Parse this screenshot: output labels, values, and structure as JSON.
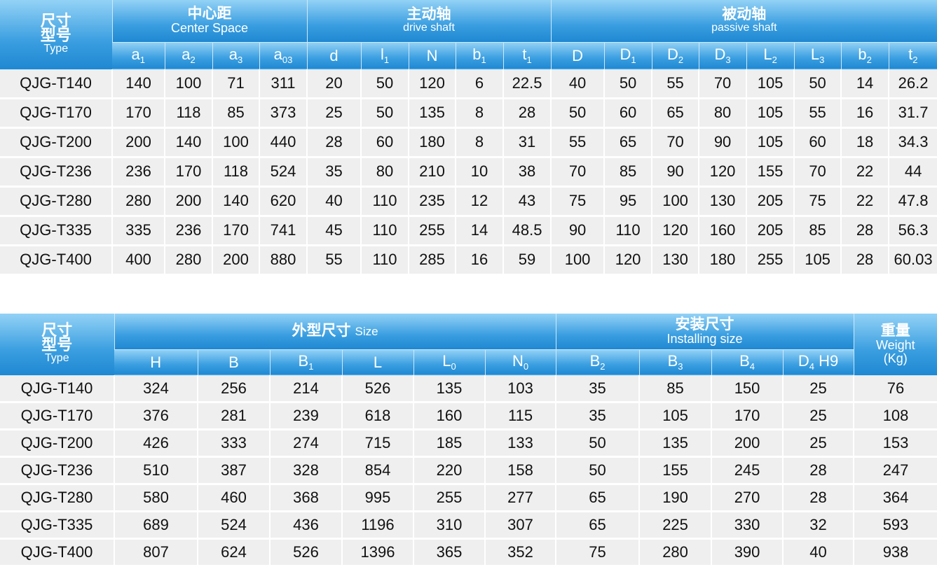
{
  "colors": {
    "header_top": "#93d2f6",
    "header_bottom": "#1f88d2",
    "row_bg": "#efefef"
  },
  "table1": {
    "type_header": {
      "zh1": "尺寸",
      "zh2": "型号",
      "en": "Type"
    },
    "groups": [
      {
        "zh": "中心距",
        "en": "Center Space",
        "span": 4
      },
      {
        "zh": "主动轴",
        "en": "drive shaft",
        "span": 5
      },
      {
        "zh": "被动轴",
        "en": "passive shaft",
        "span": 8
      }
    ],
    "columns": [
      {
        "b": "a",
        "s": "1"
      },
      {
        "b": "a",
        "s": "2"
      },
      {
        "b": "a",
        "s": "3"
      },
      {
        "b": "a",
        "s": "03"
      },
      {
        "b": "d",
        "s": ""
      },
      {
        "b": "l",
        "s": "1"
      },
      {
        "b": "N",
        "s": ""
      },
      {
        "b": "b",
        "s": "1"
      },
      {
        "b": "t",
        "s": "1"
      },
      {
        "b": "D",
        "s": ""
      },
      {
        "b": "D",
        "s": "1"
      },
      {
        "b": "D",
        "s": "2"
      },
      {
        "b": "D",
        "s": "3"
      },
      {
        "b": "L",
        "s": "2"
      },
      {
        "b": "L",
        "s": "3"
      },
      {
        "b": "b",
        "s": "2"
      },
      {
        "b": "t",
        "s": "2"
      }
    ],
    "rows": [
      [
        "QJG-T140",
        "140",
        "100",
        "71",
        "311",
        "20",
        "50",
        "120",
        "6",
        "22.5",
        "40",
        "50",
        "55",
        "70",
        "105",
        "50",
        "14",
        "26.2"
      ],
      [
        "QJG-T170",
        "170",
        "118",
        "85",
        "373",
        "25",
        "50",
        "135",
        "8",
        "28",
        "50",
        "60",
        "65",
        "80",
        "105",
        "55",
        "16",
        "31.7"
      ],
      [
        "QJG-T200",
        "200",
        "140",
        "100",
        "440",
        "28",
        "60",
        "180",
        "8",
        "31",
        "55",
        "65",
        "70",
        "90",
        "105",
        "60",
        "18",
        "34.3"
      ],
      [
        "QJG-T236",
        "236",
        "170",
        "118",
        "524",
        "35",
        "80",
        "210",
        "10",
        "38",
        "70",
        "85",
        "90",
        "120",
        "155",
        "70",
        "22",
        "44"
      ],
      [
        "QJG-T280",
        "280",
        "200",
        "140",
        "620",
        "40",
        "110",
        "235",
        "12",
        "43",
        "75",
        "95",
        "100",
        "130",
        "205",
        "75",
        "22",
        "47.8"
      ],
      [
        "QJG-T335",
        "335",
        "236",
        "170",
        "741",
        "45",
        "110",
        "255",
        "14",
        "48.5",
        "90",
        "110",
        "120",
        "160",
        "205",
        "85",
        "28",
        "56.3"
      ],
      [
        "QJG-T400",
        "400",
        "280",
        "200",
        "880",
        "55",
        "110",
        "285",
        "16",
        "59",
        "100",
        "120",
        "130",
        "180",
        "255",
        "105",
        "28",
        "60.03"
      ]
    ]
  },
  "table2": {
    "type_header": {
      "zh1": "尺寸",
      "zh2": "型号",
      "en": "Type"
    },
    "groups": [
      {
        "zh": "外型尺寸",
        "en": "Size",
        "span": 6,
        "inline": true
      },
      {
        "zh": "安装尺寸",
        "en": "Installing size",
        "span": 4
      }
    ],
    "weight_header": {
      "zh": "重量",
      "en1": "Weight",
      "en2": "(Kg)"
    },
    "columns": [
      {
        "b": "H",
        "s": ""
      },
      {
        "b": "B",
        "s": ""
      },
      {
        "b": "B",
        "s": "1"
      },
      {
        "b": "L",
        "s": ""
      },
      {
        "b": "L",
        "s": "0"
      },
      {
        "b": "N",
        "s": "0"
      },
      {
        "b": "B",
        "s": "2"
      },
      {
        "b": "B",
        "s": "3"
      },
      {
        "b": "B",
        "s": "4"
      },
      {
        "b": "D",
        "s": "4",
        "t": " H9"
      }
    ],
    "rows": [
      [
        "QJG-T140",
        "324",
        "256",
        "214",
        "526",
        "135",
        "103",
        "35",
        "85",
        "150",
        "25",
        "76"
      ],
      [
        "QJG-T170",
        "376",
        "281",
        "239",
        "618",
        "160",
        "115",
        "35",
        "105",
        "170",
        "25",
        "108"
      ],
      [
        "QJG-T200",
        "426",
        "333",
        "274",
        "715",
        "185",
        "133",
        "50",
        "135",
        "200",
        "25",
        "153"
      ],
      [
        "QJG-T236",
        "510",
        "387",
        "328",
        "854",
        "220",
        "158",
        "50",
        "155",
        "245",
        "28",
        "247"
      ],
      [
        "QJG-T280",
        "580",
        "460",
        "368",
        "995",
        "255",
        "277",
        "65",
        "190",
        "270",
        "28",
        "364"
      ],
      [
        "QJG-T335",
        "689",
        "524",
        "436",
        "1196",
        "310",
        "307",
        "65",
        "225",
        "330",
        "32",
        "593"
      ],
      [
        "QJG-T400",
        "807",
        "624",
        "526",
        "1396",
        "365",
        "352",
        "75",
        "280",
        "390",
        "40",
        "938"
      ]
    ]
  }
}
